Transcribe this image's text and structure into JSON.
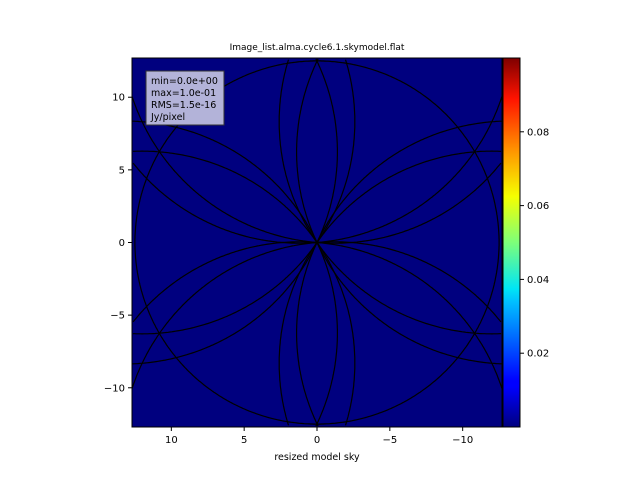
{
  "chart_data": {
    "type": "heatmap",
    "title": "Image_list.alma.cycle6.1.skymodel.flat",
    "xlabel": "resized model sky",
    "ylabel": "",
    "xlim": [
      12.7,
      -12.7
    ],
    "ylim": [
      -12.7,
      12.7
    ],
    "xticks": [
      10,
      5,
      0,
      -5,
      -10
    ],
    "yticks": [
      -10,
      -5,
      0,
      5,
      10
    ],
    "xtick_labels": [
      "10",
      "5",
      "0",
      "−5",
      "−10"
    ],
    "ytick_labels": [
      "−10",
      "−5",
      "0",
      "5",
      "10"
    ],
    "grid": false,
    "colormap": "jet",
    "background_color": "#00007f",
    "overlay_line_color": "#000000",
    "overlay": {
      "outer_circle_radius": 12.5,
      "petal_circle_radius": 14.6,
      "petal_directions_deg": [
        90,
        30,
        -30,
        150,
        210,
        270
      ],
      "petal_offset_deg": 64.7
    },
    "stats_box": {
      "lines": [
        "min=0.0e+00",
        "max=1.0e-01",
        "RMS=1.5e-16",
        "Jy/pixel"
      ],
      "placement": "top-left"
    },
    "colorbar": {
      "range": [
        0,
        0.1
      ],
      "ticks": [
        0.02,
        0.04,
        0.06,
        0.08
      ],
      "tick_labels": [
        "0.02",
        "0.04",
        "0.06",
        "0.08"
      ],
      "placement": "right"
    }
  }
}
